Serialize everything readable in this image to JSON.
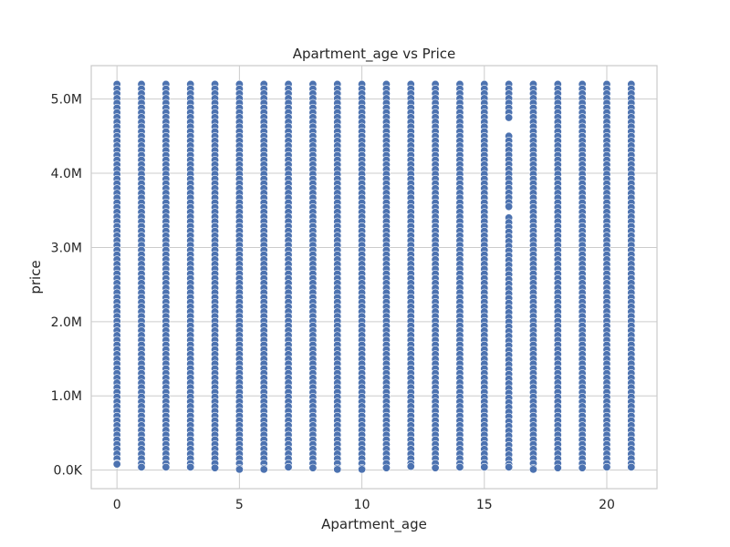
{
  "chart_data": {
    "type": "scatter",
    "title": "Apartment_age vs Price",
    "xlabel": "Apartment_age",
    "ylabel": "price",
    "xlim": [
      -1.05,
      22.05
    ],
    "ylim": [
      -250000,
      5450000
    ],
    "x_ticks": [
      {
        "value": 0,
        "label": "0"
      },
      {
        "value": 5,
        "label": "5"
      },
      {
        "value": 10,
        "label": "10"
      },
      {
        "value": 15,
        "label": "15"
      },
      {
        "value": 20,
        "label": "20"
      }
    ],
    "y_ticks": [
      {
        "value": 0,
        "label": "0.0K"
      },
      {
        "value": 1000000,
        "label": "1.0M"
      },
      {
        "value": 2000000,
        "label": "2.0M"
      },
      {
        "value": 3000000,
        "label": "3.0M"
      },
      {
        "value": 4000000,
        "label": "4.0M"
      },
      {
        "value": 5000000,
        "label": "5.0M"
      }
    ],
    "grid": true,
    "marker_color": "#4c72b0",
    "marker_edge_color": "#ffffff",
    "series": [
      {
        "columns": [
          {
            "x": 0,
            "ranges": [
              [
                80000,
                5200000
              ]
            ]
          },
          {
            "x": 1,
            "ranges": [
              [
                40000,
                5200000
              ]
            ]
          },
          {
            "x": 2,
            "ranges": [
              [
                40000,
                5200000
              ]
            ]
          },
          {
            "x": 3,
            "ranges": [
              [
                40000,
                5200000
              ]
            ]
          },
          {
            "x": 4,
            "ranges": [
              [
                30000,
                5200000
              ]
            ]
          },
          {
            "x": 5,
            "ranges": [
              [
                10000,
                5200000
              ]
            ]
          },
          {
            "x": 6,
            "ranges": [
              [
                10000,
                5200000
              ]
            ]
          },
          {
            "x": 7,
            "ranges": [
              [
                40000,
                5200000
              ]
            ]
          },
          {
            "x": 8,
            "ranges": [
              [
                30000,
                5200000
              ]
            ]
          },
          {
            "x": 9,
            "ranges": [
              [
                10000,
                5200000
              ]
            ]
          },
          {
            "x": 10,
            "ranges": [
              [
                10000,
                5200000
              ]
            ]
          },
          {
            "x": 11,
            "ranges": [
              [
                30000,
                5200000
              ]
            ]
          },
          {
            "x": 12,
            "ranges": [
              [
                50000,
                5200000
              ]
            ]
          },
          {
            "x": 13,
            "ranges": [
              [
                30000,
                5200000
              ]
            ]
          },
          {
            "x": 14,
            "ranges": [
              [
                40000,
                5200000
              ]
            ]
          },
          {
            "x": 15,
            "ranges": [
              [
                40000,
                5200000
              ]
            ]
          },
          {
            "x": 16,
            "ranges": [
              [
                40000,
                3400000
              ],
              [
                3550000,
                4500000
              ],
              [
                4750000,
                5200000
              ]
            ]
          },
          {
            "x": 17,
            "ranges": [
              [
                10000,
                5200000
              ]
            ]
          },
          {
            "x": 18,
            "ranges": [
              [
                30000,
                5200000
              ]
            ]
          },
          {
            "x": 19,
            "ranges": [
              [
                30000,
                5200000
              ]
            ]
          },
          {
            "x": 20,
            "ranges": [
              [
                40000,
                5200000
              ]
            ]
          },
          {
            "x": 21,
            "ranges": [
              [
                40000,
                5200000
              ]
            ]
          }
        ]
      }
    ]
  }
}
